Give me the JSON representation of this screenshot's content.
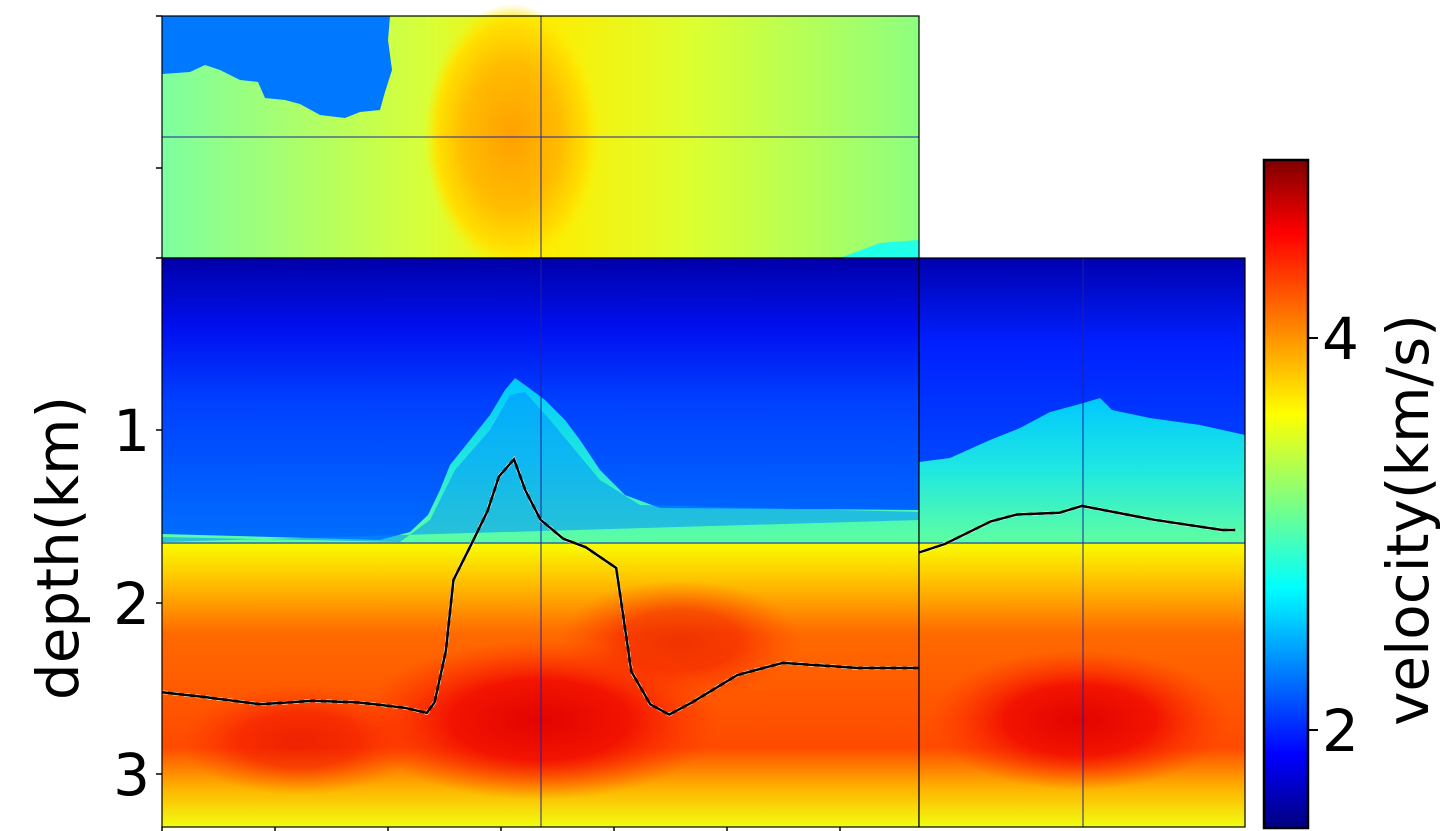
{
  "chart_data": {
    "type": "heatmap",
    "title": "",
    "colormap": "jet",
    "ylabel": "depth(km)",
    "ylim": [
      0.0,
      3.3
    ],
    "y_ticks": [
      {
        "value": 1,
        "label": "1"
      },
      {
        "value": 2,
        "label": "2"
      },
      {
        "value": 3,
        "label": "3"
      }
    ],
    "colorbar": {
      "label": "velocity(km/s)",
      "range": [
        1.5,
        5.0
      ],
      "ticks": [
        {
          "value": 2,
          "label": "2"
        },
        {
          "value": 4,
          "label": "4"
        }
      ]
    },
    "grid": false,
    "panels": {
      "depth_slice": {
        "view": "top",
        "y_values": [],
        "series": []
      },
      "inline_section": {
        "view": "front",
        "series": [
          {
            "style": "black-line",
            "x": [
              0.0,
              0.06,
              0.13,
              0.2,
              0.26,
              0.32,
              0.35,
              0.36,
              0.375,
              0.385,
              0.41,
              0.43,
              0.445,
              0.455,
              0.465,
              0.48,
              0.5,
              0.53,
              0.56,
              0.6,
              0.61,
              0.62,
              0.645,
              0.67,
              0.7,
              0.76,
              0.82,
              0.92,
              1.0
            ],
            "y": [
              2.52,
              2.55,
              2.59,
              2.57,
              2.58,
              2.61,
              2.64,
              2.58,
              2.28,
              1.87,
              1.65,
              1.47,
              1.27,
              1.22,
              1.17,
              1.35,
              1.52,
              1.63,
              1.68,
              1.8,
              2.1,
              2.4,
              2.59,
              2.65,
              2.58,
              2.42,
              2.35,
              2.38,
              2.38
            ]
          }
        ]
      },
      "crossline_section": {
        "view": "side",
        "series": [
          {
            "style": "black-line",
            "x": [
              0.0,
              0.08,
              0.22,
              0.3,
              0.43,
              0.5,
              0.72,
              0.93,
              0.97
            ],
            "y": [
              1.71,
              1.66,
              1.53,
              1.49,
              1.48,
              1.44,
              1.52,
              1.58,
              1.58
            ]
          }
        ]
      }
    }
  }
}
